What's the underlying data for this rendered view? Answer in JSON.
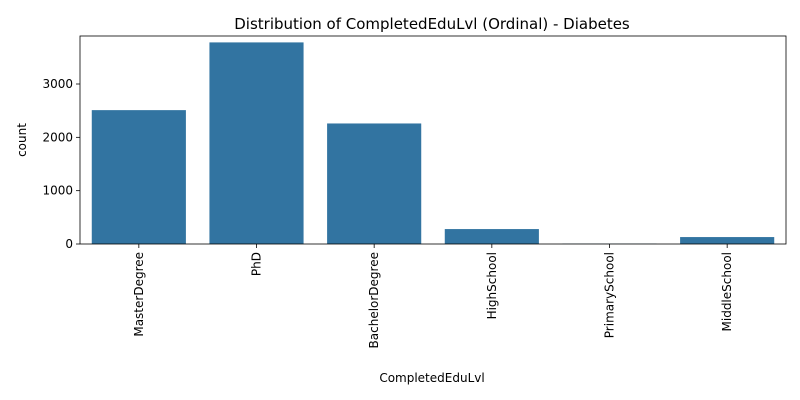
{
  "chart_data": {
    "type": "bar",
    "title": "Distribution of CompletedEduLvl (Ordinal) - Diabetes",
    "xlabel": "CompletedEduLvl",
    "ylabel": "count",
    "categories": [
      "MasterDegree",
      "PhD",
      "BachelorDegree",
      "HighSchool",
      "PrimarySchool",
      "MiddleSchool"
    ],
    "values": [
      2510,
      3780,
      2260,
      280,
      5,
      130
    ],
    "ylim": [
      0,
      3900
    ],
    "yticks": [
      0,
      1000,
      2000,
      3000
    ],
    "ytick_labels": [
      "0",
      "1000",
      "2000",
      "3000"
    ],
    "bar_color": "#3274a1",
    "grid": false,
    "legend": "none"
  }
}
